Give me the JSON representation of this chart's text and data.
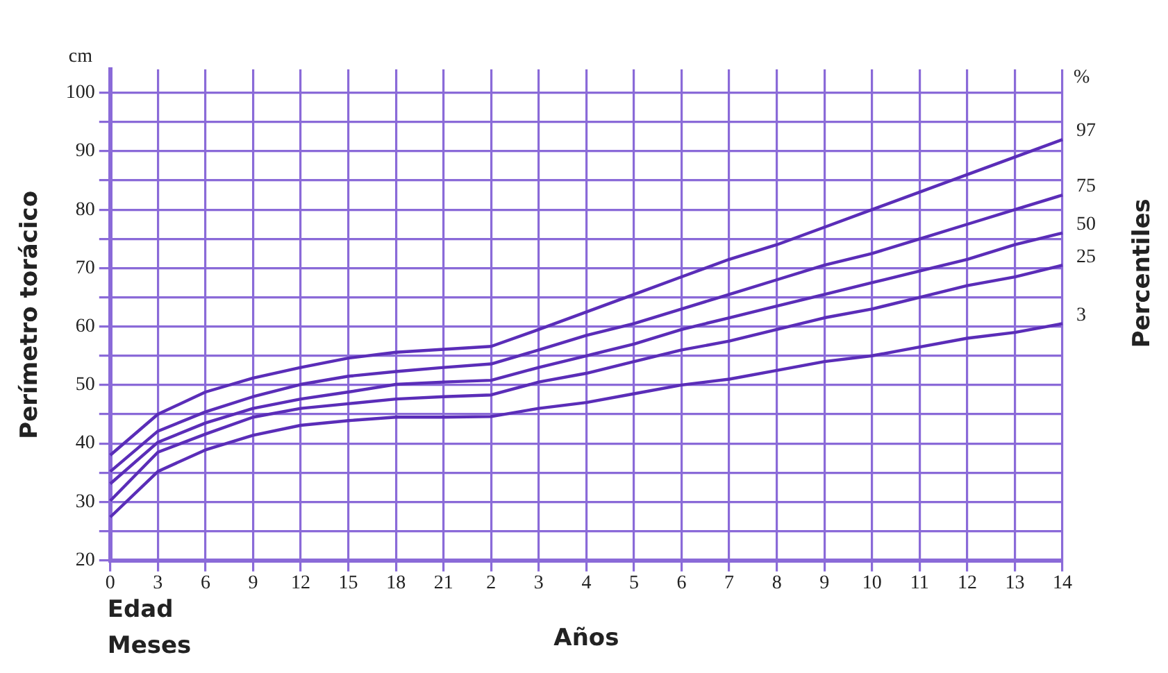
{
  "chart_data": {
    "type": "line",
    "ylabel": "Perímetro torácico",
    "y2label": "Percentiles",
    "xlabel": "Años",
    "annotations": [
      "cm",
      "%",
      "Edad",
      "Meses"
    ],
    "categories": [
      "0",
      "3",
      "6",
      "9",
      "12",
      "15",
      "18",
      "21",
      "2",
      "3",
      "4",
      "5",
      "6",
      "7",
      "8",
      "9",
      "10",
      "11",
      "12",
      "13",
      "14"
    ],
    "ylim": [
      20,
      104
    ],
    "yticks": [
      20,
      {
        "value": 25,
        "label": null
      },
      30,
      {
        "value": 35,
        "label": null
      },
      40,
      {
        "value": 45,
        "label": null
      },
      50,
      {
        "value": 55,
        "label": null
      },
      60,
      {
        "value": 65,
        "label": null
      },
      70,
      {
        "value": 75,
        "label": null
      },
      80,
      {
        "value": 85,
        "label": null
      },
      90,
      {
        "value": 95,
        "label": null
      },
      100
    ],
    "grid": true,
    "legend": false,
    "series": [
      {
        "name": "97",
        "color": "#5a2db8",
        "values": [
          38,
          45,
          48.8,
          51.2,
          53,
          54.6,
          55.6,
          56.1,
          56.6,
          59.5,
          62.5,
          65.5,
          68.5,
          71.5,
          74,
          77,
          80,
          83,
          86,
          89,
          92
        ]
      },
      {
        "name": "75",
        "color": "#5a2db8",
        "values": [
          35.2,
          42.1,
          45.4,
          48,
          50.1,
          51.5,
          52.3,
          53,
          53.6,
          56,
          58.5,
          60.5,
          63,
          65.5,
          68,
          70.5,
          72.5,
          75,
          77.5,
          80,
          82.5
        ]
      },
      {
        "name": "50",
        "color": "#5a2db8",
        "values": [
          33.1,
          40.2,
          43.5,
          46,
          47.6,
          48.8,
          50.1,
          50.5,
          50.8,
          53,
          55,
          57,
          59.5,
          61.5,
          63.5,
          65.5,
          67.5,
          69.5,
          71.5,
          74,
          76
        ]
      },
      {
        "name": "25",
        "color": "#5a2db8",
        "values": [
          30.2,
          38.5,
          41.6,
          44.5,
          46,
          46.8,
          47.6,
          48,
          48.3,
          50.5,
          52,
          54,
          56,
          57.5,
          59.5,
          61.5,
          63,
          65,
          67,
          68.5,
          70.5
        ]
      },
      {
        "name": "3",
        "color": "#5a2db8",
        "values": [
          27.4,
          35.2,
          38.9,
          41.4,
          43.1,
          43.9,
          44.5,
          44.5,
          44.6,
          46,
          47,
          48.5,
          50,
          51,
          52.5,
          54,
          55,
          56.5,
          58,
          59,
          60.5
        ]
      }
    ]
  }
}
